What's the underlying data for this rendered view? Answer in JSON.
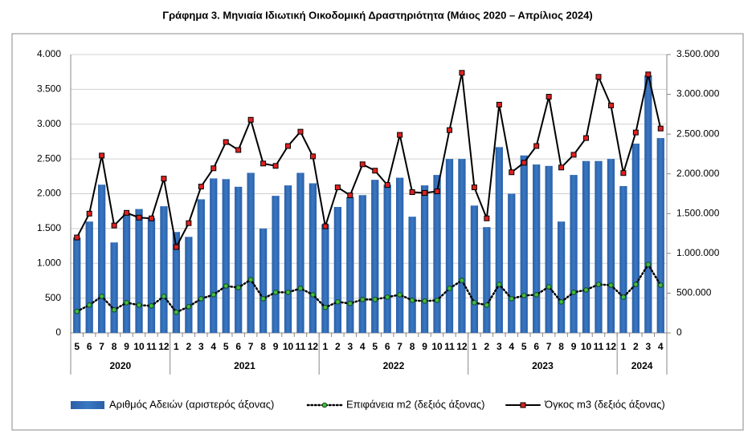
{
  "chart_data": {
    "type": "bar_line",
    "title": "Γράφημα 3. Μηνιαία Ιδιωτική Οικοδομική Δραστηριότητα (Μάιος 2020 – Απρίλιος 2024)",
    "groups": [
      {
        "label": "2020",
        "categories": [
          "5",
          "6",
          "7",
          "8",
          "9",
          "10",
          "11",
          "12"
        ]
      },
      {
        "label": "2021",
        "categories": [
          "1",
          "2",
          "3",
          "4",
          "5",
          "6",
          "7",
          "8",
          "9",
          "10",
          "11",
          "12"
        ]
      },
      {
        "label": "2022",
        "categories": [
          "1",
          "2",
          "3",
          "4",
          "5",
          "6",
          "7",
          "8",
          "9",
          "10",
          "11",
          "12"
        ]
      },
      {
        "label": "2023",
        "categories": [
          "1",
          "2",
          "3",
          "4",
          "5",
          "6",
          "7",
          "8",
          "9",
          "10",
          "11",
          "12"
        ]
      },
      {
        "label": "2024",
        "categories": [
          "1",
          "2",
          "3",
          "4"
        ]
      }
    ],
    "series": [
      {
        "name": "Αριθμός Αδειών (αριστερός άξονας)",
        "type": "bar",
        "color": "#3a78c2",
        "values": [
          1370,
          1600,
          2130,
          1300,
          1720,
          1780,
          1650,
          1820,
          1450,
          1380,
          1920,
          2220,
          2210,
          2100,
          2300,
          1500,
          1970,
          2120,
          2300,
          2150,
          1560,
          1810,
          1950,
          1980,
          2200,
          2130,
          2230,
          1670,
          2120,
          2270,
          2500,
          2500,
          1830,
          1520,
          2670,
          2000,
          2550,
          2420,
          2400,
          1600,
          2270,
          2470,
          2470,
          2500,
          2110,
          2720,
          3700,
          2800
        ]
      },
      {
        "name": "Επιφάνεια m2 (δεξιός άξονας)",
        "type": "line",
        "axis": "y2",
        "color": "#000000",
        "marker_color": "#3fbf3f",
        "dash": true,
        "values": [
          270000,
          350000,
          460000,
          290000,
          380000,
          350000,
          340000,
          460000,
          260000,
          330000,
          430000,
          480000,
          590000,
          570000,
          670000,
          430000,
          510000,
          510000,
          560000,
          480000,
          320000,
          390000,
          370000,
          420000,
          420000,
          450000,
          480000,
          410000,
          400000,
          410000,
          560000,
          660000,
          380000,
          350000,
          610000,
          430000,
          470000,
          480000,
          580000,
          390000,
          510000,
          540000,
          610000,
          600000,
          450000,
          610000,
          860000,
          600000
        ]
      },
      {
        "name": "Όγκος m3 (δεξιός άξονας)",
        "type": "line",
        "axis": "y2",
        "color": "#000000",
        "marker_color": "#e02020",
        "dash": false,
        "values": [
          1200000,
          1500000,
          2230000,
          1350000,
          1510000,
          1450000,
          1440000,
          1940000,
          1080000,
          1380000,
          1840000,
          2070000,
          2400000,
          2300000,
          2680000,
          2130000,
          2100000,
          2350000,
          2530000,
          2220000,
          1340000,
          1830000,
          1730000,
          2120000,
          2040000,
          1860000,
          2490000,
          1770000,
          1760000,
          1780000,
          2550000,
          3270000,
          1830000,
          1440000,
          2870000,
          2020000,
          2140000,
          2350000,
          2970000,
          2080000,
          2240000,
          2450000,
          3220000,
          2860000,
          2010000,
          2520000,
          3250000,
          2570000
        ]
      }
    ],
    "ylim": [
      0,
      4000
    ],
    "yticks": [
      0,
      500,
      {
        "value": 1000,
        "label": "1.000"
      },
      {
        "value": 1500,
        "label": "1.500"
      },
      {
        "value": 2000,
        "label": "2.000"
      },
      {
        "value": 2500,
        "label": "2.500"
      },
      {
        "value": 3000,
        "label": "3.000"
      },
      {
        "value": 3500,
        "label": "3.500"
      },
      {
        "value": 4000,
        "label": "4.000"
      }
    ],
    "y2lim": [
      0,
      3500000
    ],
    "y2ticks": [
      0,
      {
        "value": 500000,
        "label": "500.000"
      },
      {
        "value": 1000000,
        "label": "1.000.000"
      },
      {
        "value": 1500000,
        "label": "1.500.000"
      },
      {
        "value": 2000000,
        "label": "2.000.000"
      },
      {
        "value": 2500000,
        "label": "2.500.000"
      },
      {
        "value": 3000000,
        "label": "3.000.000"
      },
      {
        "value": 3500000,
        "label": "3.500.000"
      }
    ],
    "grid": true,
    "legend": "bottom"
  }
}
